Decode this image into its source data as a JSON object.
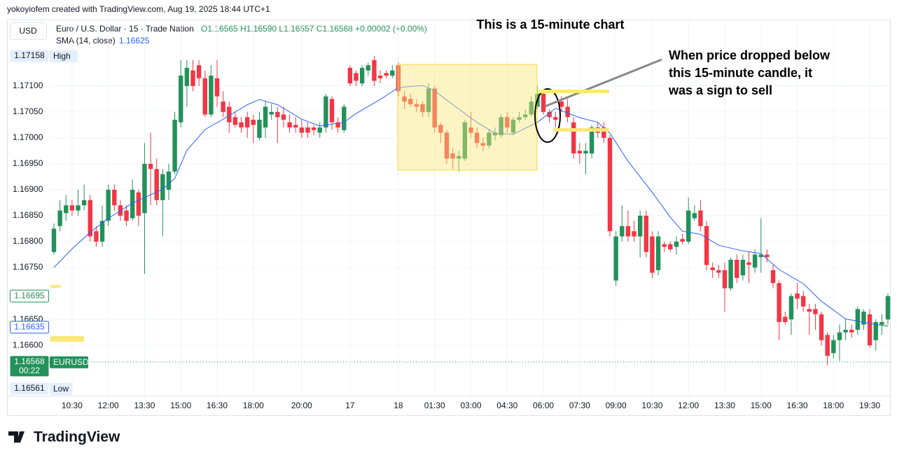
{
  "header": {
    "credit": "yokoyiofem created with TradingView.com, Aug 19, 2025 18:44 UTC+1",
    "currency": "USD",
    "symbol": "Euro / U.S. Dollar · 15 · Trade Nation",
    "ohlc": "O1.16565 H1.16590 L1.16557 C1.16568 +0.00002 (+0.00%)",
    "indicator": "SMA (14, close)",
    "indicator_value": "1.16625"
  },
  "chart_data": {
    "type": "candlestick",
    "title": "This is a 15-minute chart",
    "annotation": [
      "When price dropped below",
      "this 15-minute candle, it",
      "was a sign to sell"
    ],
    "categories": [
      null,
      null,
      null,
      "10:30",
      null,
      null,
      null,
      null,
      null,
      "12:00",
      null,
      null,
      null,
      null,
      null,
      "13:30",
      null,
      null,
      null,
      null,
      null,
      "15:00",
      null,
      null,
      null,
      null,
      null,
      "16:30",
      null,
      null,
      null,
      null,
      null,
      "18:00",
      null,
      null,
      null,
      null,
      null,
      null,
      null,
      "20:00",
      null,
      null,
      null,
      null,
      null,
      null,
      null,
      "17",
      null,
      null,
      null,
      null,
      null,
      null,
      null,
      "18",
      null,
      null,
      null,
      null,
      null,
      "01:30",
      null,
      null,
      null,
      null,
      null,
      "03:00",
      null,
      null,
      null,
      null,
      null,
      "04:30",
      null,
      null,
      null,
      null,
      null,
      "06:00",
      null,
      null,
      null,
      null,
      null,
      "07:30",
      null,
      null,
      null,
      null,
      null,
      "09:00",
      null,
      null,
      null,
      null,
      null,
      "10:30",
      null,
      null,
      null,
      null,
      null,
      "12:00",
      null,
      null,
      null,
      null,
      null,
      "13:30",
      null,
      null,
      null,
      null,
      null,
      "15:00",
      null,
      null,
      null,
      null,
      null,
      "16:30",
      null,
      null,
      null,
      null,
      null,
      "18:00",
      null,
      null,
      null,
      null,
      null,
      "19:30",
      null,
      null,
      null
    ],
    "open": [
      1.1678,
      1.1683,
      1.16855,
      1.1687,
      1.1686,
      1.1687,
      1.1688,
      1.1682,
      1.168,
      1.1684,
      1.169,
      1.1687,
      1.1686,
      1.16845,
      1.16895,
      1.16855,
      1.1695,
      1.1694,
      1.1688,
      1.169,
      1.16935,
      1.1703,
      1.171,
      1.1713,
      1.1714,
      1.17115,
      1.17045,
      1.17115,
      1.1707,
      1.1706,
      1.1704,
      1.1703,
      1.1704,
      1.17035,
      1.17,
      1.1702,
      1.17045,
      1.1705,
      1.17045,
      1.1703,
      1.17025,
      1.1702,
      1.1702,
      1.1702,
      1.1701,
      1.1702,
      1.17075,
      1.1703,
      1.17015,
      1.17135,
      1.17125,
      1.17105,
      1.1713,
      1.1715,
      1.1712,
      1.17125,
      1.1712,
      1.1714,
      1.1708,
      1.17075,
      1.17065,
      1.17065,
      1.1705,
      1.17095,
      1.17025,
      1.1701,
      1.1697,
      1.1696,
      1.1696,
      1.1702,
      1.1701,
      1.1699,
      1.16985,
      1.17005,
      1.17005,
      1.1704,
      1.1701,
      1.17035,
      1.1704,
      1.17045,
      1.1706,
      1.17085,
      1.1705,
      1.1704,
      1.1707,
      1.1706,
      1.1703,
      1.16975,
      1.1697,
      1.1697,
      1.1702,
      1.1702,
      1.17,
      1.16725,
      1.1681,
      1.1683,
      1.1682,
      1.1681,
      1.1685,
      1.1681,
      1.16745,
      1.16795,
      1.16795,
      1.1679,
      1.16805,
      1.168,
      1.16845,
      1.1686,
      1.1683,
      1.1675,
      1.16745,
      1.16745,
      1.1671,
      1.16765,
      1.16735,
      1.1676,
      1.1675,
      1.1677,
      1.16775,
      1.16745,
      1.1672,
      1.16655,
      1.1665,
      1.167,
      1.16695,
      1.1667,
      1.1667,
      1.1666,
      1.1662,
      1.16585,
      1.1661,
      1.16625,
      1.1663,
      1.1663,
      1.1664,
      1.1666,
      1.1661,
      1.1664,
      1.1665
    ],
    "high": [
      1.16835,
      1.1688,
      1.1689,
      1.1688,
      1.169,
      1.1691,
      1.1689,
      1.1683,
      1.1687,
      1.1691,
      1.1691,
      1.1688,
      1.1687,
      1.1692,
      1.169,
      1.1699,
      1.1701,
      1.1696,
      1.1694,
      1.1695,
      1.1705,
      1.1715,
      1.1715,
      1.1715,
      1.1715,
      1.1713,
      1.1714,
      1.1715,
      1.1709,
      1.1707,
      1.1705,
      1.1704,
      1.1705,
      1.17045,
      1.1705,
      1.1707,
      1.17065,
      1.1706,
      1.1706,
      1.17045,
      1.1704,
      1.17035,
      1.1703,
      1.17025,
      1.1703,
      1.17085,
      1.1708,
      1.1704,
      1.17065,
      1.1714,
      1.1713,
      1.1714,
      1.17145,
      1.17158,
      1.1713,
      1.1713,
      1.1714,
      1.17145,
      1.1709,
      1.17085,
      1.17075,
      1.1707,
      1.17105,
      1.171,
      1.1703,
      1.17015,
      1.1698,
      1.16975,
      1.17035,
      1.1705,
      1.1702,
      1.17,
      1.17015,
      1.1702,
      1.17045,
      1.1705,
      1.1704,
      1.1705,
      1.17055,
      1.1708,
      1.171,
      1.1709,
      1.17055,
      1.1705,
      1.1708,
      1.17075,
      1.1704,
      1.1699,
      1.1699,
      1.17025,
      1.1703,
      1.1703,
      1.17005,
      1.1682,
      1.1687,
      1.1686,
      1.1684,
      1.1686,
      1.1686,
      1.1682,
      1.1682,
      1.168,
      1.168,
      1.1681,
      1.16815,
      1.16885,
      1.1687,
      1.1688,
      1.1684,
      1.1676,
      1.16755,
      1.1676,
      1.1677,
      1.16775,
      1.16775,
      1.1678,
      1.16785,
      1.16845,
      1.16785,
      1.16755,
      1.16725,
      1.16665,
      1.167,
      1.1672,
      1.16705,
      1.1668,
      1.1668,
      1.16665,
      1.16625,
      1.1662,
      1.1664,
      1.1665,
      1.1664,
      1.16675,
      1.1667,
      1.1667,
      1.1665,
      1.1666,
      1.167
    ],
    "low": [
      1.16775,
      1.1682,
      1.1684,
      1.1685,
      1.1685,
      1.1686,
      1.168,
      1.1679,
      1.1679,
      1.1683,
      1.1686,
      1.1684,
      1.1683,
      1.1684,
      1.1683,
      1.16738,
      1.1687,
      1.1687,
      1.1681,
      1.1688,
      1.1693,
      1.1702,
      1.1706,
      1.1709,
      1.171,
      1.1704,
      1.1704,
      1.1706,
      1.1704,
      1.1701,
      1.1702,
      1.1701,
      1.17,
      1.1699,
      1.16995,
      1.17,
      1.17035,
      1.1699,
      1.1702,
      1.1701,
      1.1701,
      1.17,
      1.17,
      1.17005,
      1.17,
      1.1701,
      1.17015,
      1.1701,
      1.1701,
      1.171,
      1.171,
      1.171,
      1.1712,
      1.171,
      1.17105,
      1.17115,
      1.17115,
      1.1708,
      1.17055,
      1.1706,
      1.1705,
      1.1704,
      1.1704,
      1.1701,
      1.1699,
      1.1695,
      1.1694,
      1.16935,
      1.16955,
      1.17,
      1.1698,
      1.16975,
      1.1698,
      1.16995,
      1.17,
      1.1701,
      1.17005,
      1.1703,
      1.17035,
      1.1704,
      1.17055,
      1.17045,
      1.1703,
      1.1702,
      1.1705,
      1.1703,
      1.1696,
      1.1695,
      1.1693,
      1.1696,
      1.17,
      1.1699,
      1.1681,
      1.16715,
      1.168,
      1.168,
      1.168,
      1.1677,
      1.1677,
      1.1673,
      1.16735,
      1.1678,
      1.1678,
      1.16775,
      1.16795,
      1.16795,
      1.1684,
      1.1682,
      1.16745,
      1.1673,
      1.1673,
      1.16665,
      1.16705,
      1.1672,
      1.16725,
      1.1672,
      1.1674,
      1.1674,
      1.1676,
      1.1671,
      1.1661,
      1.1664,
      1.1662,
      1.1667,
      1.16665,
      1.1662,
      1.1663,
      1.166,
      1.16561,
      1.16575,
      1.1657,
      1.1661,
      1.16615,
      1.1662,
      1.1663,
      1.16595,
      1.1659,
      1.1662,
      1.1664
    ],
    "close": [
      1.16825,
      1.1686,
      1.1687,
      1.1686,
      1.1687,
      1.1688,
      1.1681,
      1.168,
      1.1684,
      1.169,
      1.1687,
      1.1685,
      1.1684,
      1.169,
      1.1685,
      1.1695,
      1.1694,
      1.1688,
      1.1693,
      1.16935,
      1.17035,
      1.1712,
      1.17135,
      1.171,
      1.17115,
      1.17045,
      1.1712,
      1.1708,
      1.1705,
      1.1703,
      1.17025,
      1.1702,
      1.1702,
      1.17025,
      1.17035,
      1.1706,
      1.1705,
      1.1704,
      1.17035,
      1.1702,
      1.1702,
      1.1701,
      1.1701,
      1.17015,
      1.1702,
      1.1708,
      1.1703,
      1.1702,
      1.1706,
      1.17105,
      1.1711,
      1.17135,
      1.1714,
      1.1711,
      1.17115,
      1.1712,
      1.1713,
      1.1709,
      1.1707,
      1.17065,
      1.1706,
      1.1705,
      1.17095,
      1.1702,
      1.1701,
      1.1696,
      1.1696,
      1.16965,
      1.1703,
      1.1701,
      1.1699,
      1.16985,
      1.1701,
      1.1701,
      1.1704,
      1.1702,
      1.17035,
      1.1704,
      1.17045,
      1.1707,
      1.17085,
      1.1705,
      1.1704,
      1.17035,
      1.1706,
      1.1704,
      1.1697,
      1.1697,
      1.16975,
      1.1702,
      1.1701,
      1.17,
      1.1682,
      1.1681,
      1.1683,
      1.1681,
      1.1681,
      1.1685,
      1.1678,
      1.1674,
      1.1681,
      1.1679,
      1.16785,
      1.168,
      1.168,
      1.1686,
      1.16855,
      1.1683,
      1.16755,
      1.16745,
      1.1674,
      1.1671,
      1.16765,
      1.1673,
      1.16765,
      1.16755,
      1.16775,
      1.16775,
      1.1677,
      1.1672,
      1.16645,
      1.16645,
      1.16695,
      1.1669,
      1.16675,
      1.16665,
      1.1666,
      1.1661,
      1.1658,
      1.1661,
      1.16625,
      1.1663,
      1.16625,
      1.1667,
      1.16665,
      1.166,
      1.16645,
      1.16645,
      1.16695
    ],
    "up_color": "#22915a",
    "down_color": "#f23645",
    "sma": {
      "color": "#2962ff",
      "x": [
        0,
        3,
        6,
        9,
        13,
        18,
        20,
        22,
        25,
        28,
        32,
        34,
        37,
        41,
        44,
        48,
        50,
        54,
        57,
        61,
        63,
        66,
        70,
        73,
        76,
        80,
        83,
        87,
        90,
        92,
        95,
        99,
        102,
        104,
        107,
        110,
        114,
        117,
        120,
        124,
        127,
        131,
        135,
        138
      ],
      "values": [
        1.1675,
        1.16786,
        1.16818,
        1.16845,
        1.16874,
        1.16901,
        1.16922,
        1.16976,
        1.17016,
        1.17036,
        1.17064,
        1.17074,
        1.17064,
        1.17036,
        1.17023,
        1.1703,
        1.17047,
        1.17074,
        1.17097,
        1.17101,
        1.17091,
        1.17064,
        1.1703,
        1.17009,
        1.17007,
        1.1703,
        1.17057,
        1.17039,
        1.1703,
        1.17009,
        1.16955,
        1.16895,
        1.16847,
        1.1682,
        1.16814,
        1.16793,
        1.16782,
        1.16777,
        1.16746,
        1.16719,
        1.16685,
        1.16651,
        1.16642,
        1.16637
      ]
    },
    "ylim": [
      1.16503,
      1.17228
    ],
    "yticks": [
      {
        "value": 1.166,
        "label": "1.16600"
      },
      {
        "value": 1.1665,
        "label": "1.16650"
      },
      {
        "value": 1.1675,
        "label": "1.16750"
      },
      {
        "value": 1.168,
        "label": "1.16800"
      },
      {
        "value": 1.1685,
        "label": "1.16850"
      },
      {
        "value": 1.169,
        "label": "1.16900"
      },
      {
        "value": 1.1695,
        "label": "1.16950"
      },
      {
        "value": 1.17,
        "label": "1.17000"
      },
      {
        "value": 1.1705,
        "label": "1.17050"
      },
      {
        "value": 1.171,
        "label": "1.17100"
      }
    ],
    "grid": true,
    "price_tags": [
      {
        "value": 1.17158,
        "tag": "High",
        "color": "#e3effd",
        "filled": true
      },
      {
        "value": 1.16695,
        "color": "#22915a",
        "filled": false
      },
      {
        "value": 1.16635,
        "color": "#2962ff",
        "filled": false
      },
      {
        "value": 1.16568,
        "tag": "EURUSD",
        "countdown": "00:22",
        "color": "#22915a",
        "filled": true
      },
      {
        "value": 1.16561,
        "tag": "Low",
        "color": "#e3effd",
        "filled": true
      }
    ]
  },
  "footer": {
    "logo": "TradingView"
  }
}
